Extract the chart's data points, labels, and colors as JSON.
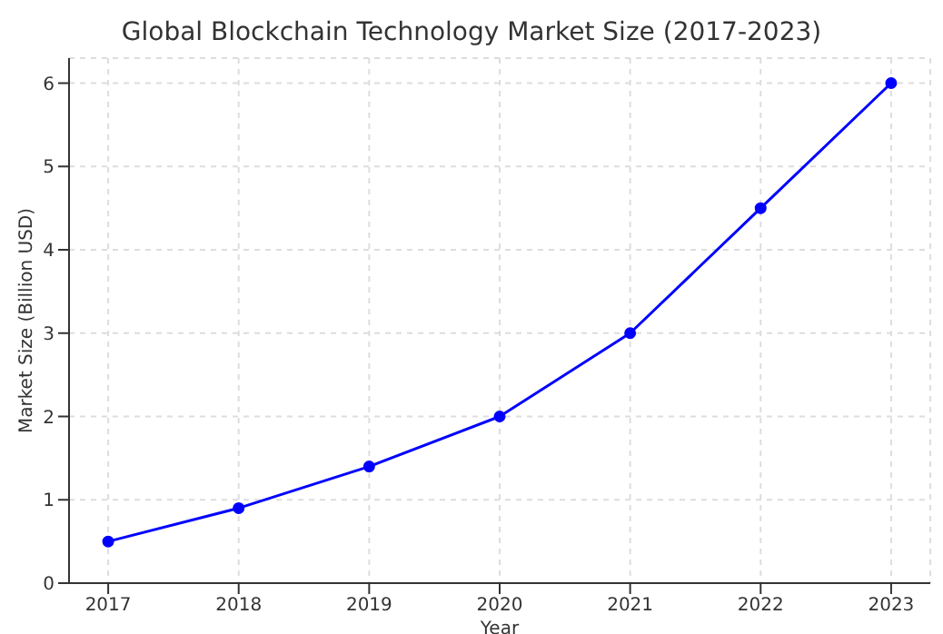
{
  "chart_data": {
    "type": "line",
    "title": "Global Blockchain Technology Market Size (2017-2023)",
    "xlabel": "Year",
    "ylabel": "Market Size (Billion USD)",
    "x": [
      2017,
      2018,
      2019,
      2020,
      2021,
      2022,
      2023
    ],
    "series": [
      {
        "color": "#0000ff",
        "values": [
          0.5,
          0.9,
          1.4,
          2.0,
          3.0,
          4.5,
          6.0
        ]
      }
    ],
    "xlim": [
      2016.7,
      2023.3
    ],
    "xticks": [
      2017,
      2018,
      2019,
      2020,
      2021,
      2022,
      2023
    ],
    "ylim": [
      0,
      6.3
    ],
    "yticks": [
      0,
      1,
      2,
      3,
      4,
      5,
      6
    ],
    "grid": true,
    "marker": "circle",
    "line_style": "solid"
  }
}
